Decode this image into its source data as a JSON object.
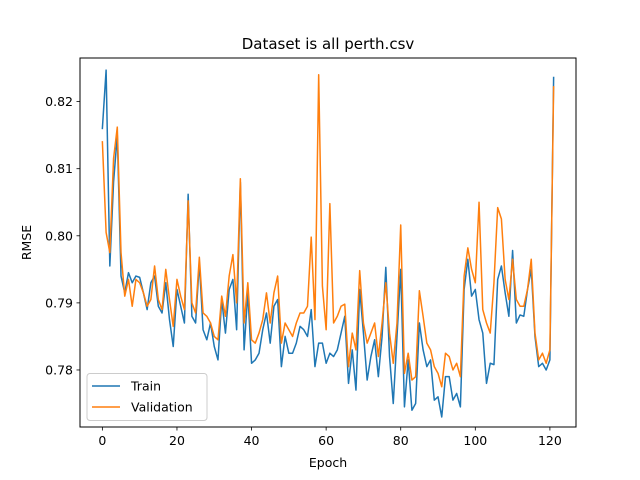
{
  "chart_data": {
    "type": "line",
    "title": "Dataset is all perth.csv",
    "xlabel": "Epoch",
    "ylabel": "RMSE",
    "xlim": [
      -6,
      127
    ],
    "ylim": [
      0.7715,
      0.8265
    ],
    "xticks": [
      0,
      20,
      40,
      60,
      80,
      100,
      120
    ],
    "yticks": [
      0.78,
      0.79,
      0.8,
      0.81,
      0.82
    ],
    "ytick_labels": [
      "0.78",
      "0.79",
      "0.80",
      "0.81",
      "0.82"
    ],
    "grid": false,
    "legend_position": "lower-left",
    "x": [
      0,
      1,
      2,
      3,
      4,
      5,
      6,
      7,
      8,
      9,
      10,
      11,
      12,
      13,
      14,
      15,
      16,
      17,
      18,
      19,
      20,
      21,
      22,
      23,
      24,
      25,
      26,
      27,
      28,
      29,
      30,
      31,
      32,
      33,
      34,
      35,
      36,
      37,
      38,
      39,
      40,
      41,
      42,
      43,
      44,
      45,
      46,
      47,
      48,
      49,
      50,
      51,
      52,
      53,
      54,
      55,
      56,
      57,
      58,
      59,
      60,
      61,
      62,
      63,
      64,
      65,
      66,
      67,
      68,
      69,
      70,
      71,
      72,
      73,
      74,
      75,
      76,
      77,
      78,
      79,
      80,
      81,
      82,
      83,
      84,
      85,
      86,
      87,
      88,
      89,
      90,
      91,
      92,
      93,
      94,
      95,
      96,
      97,
      98,
      99,
      100,
      101,
      102,
      103,
      104,
      105,
      106,
      107,
      108,
      109,
      110,
      111,
      112,
      113,
      114,
      115,
      116,
      117,
      118,
      119,
      120,
      121
    ],
    "series": [
      {
        "name": "Train",
        "color": "#1f77b4",
        "values": [
          0.816,
          0.8247,
          0.7955,
          0.808,
          0.815,
          0.794,
          0.7915,
          0.7945,
          0.793,
          0.794,
          0.7938,
          0.7915,
          0.789,
          0.793,
          0.794,
          0.7895,
          0.7885,
          0.793,
          0.7875,
          0.7835,
          0.792,
          0.7895,
          0.787,
          0.8062,
          0.788,
          0.787,
          0.796,
          0.786,
          0.7845,
          0.787,
          0.7835,
          0.7815,
          0.7905,
          0.7855,
          0.792,
          0.7935,
          0.786,
          0.808,
          0.783,
          0.7915,
          0.781,
          0.7815,
          0.7825,
          0.786,
          0.7885,
          0.784,
          0.7895,
          0.7905,
          0.7805,
          0.785,
          0.7825,
          0.7825,
          0.784,
          0.7865,
          0.786,
          0.785,
          0.789,
          0.7805,
          0.784,
          0.784,
          0.781,
          0.7825,
          0.782,
          0.783,
          0.7855,
          0.788,
          0.778,
          0.783,
          0.777,
          0.792,
          0.7855,
          0.7785,
          0.782,
          0.7845,
          0.779,
          0.785,
          0.7953,
          0.782,
          0.775,
          0.785,
          0.795,
          0.7745,
          0.7815,
          0.774,
          0.775,
          0.787,
          0.783,
          0.7805,
          0.7815,
          0.7755,
          0.776,
          0.773,
          0.779,
          0.779,
          0.7755,
          0.7765,
          0.7745,
          0.792,
          0.7965,
          0.791,
          0.792,
          0.7875,
          0.7855,
          0.778,
          0.781,
          0.7808,
          0.7935,
          0.7955,
          0.7915,
          0.788,
          0.7978,
          0.787,
          0.7882,
          0.788,
          0.792,
          0.795,
          0.785,
          0.7805,
          0.781,
          0.78,
          0.7815,
          0.8236
        ]
      },
      {
        "name": "Validation",
        "color": "#ff7f0e",
        "values": [
          0.814,
          0.8005,
          0.7975,
          0.8115,
          0.8162,
          0.7975,
          0.791,
          0.7935,
          0.7895,
          0.7935,
          0.793,
          0.7915,
          0.7895,
          0.7905,
          0.7955,
          0.7905,
          0.789,
          0.795,
          0.7905,
          0.7865,
          0.7935,
          0.791,
          0.789,
          0.8052,
          0.79,
          0.7885,
          0.7968,
          0.7885,
          0.788,
          0.787,
          0.785,
          0.7845,
          0.791,
          0.788,
          0.794,
          0.7972,
          0.79,
          0.8085,
          0.787,
          0.793,
          0.7845,
          0.784,
          0.7855,
          0.7875,
          0.7915,
          0.787,
          0.7915,
          0.794,
          0.784,
          0.787,
          0.786,
          0.785,
          0.787,
          0.7885,
          0.7885,
          0.7895,
          0.7998,
          0.7875,
          0.824,
          0.7925,
          0.786,
          0.8048,
          0.787,
          0.788,
          0.7895,
          0.7898,
          0.7805,
          0.7855,
          0.783,
          0.7948,
          0.787,
          0.784,
          0.7855,
          0.787,
          0.782,
          0.787,
          0.793,
          0.7855,
          0.781,
          0.787,
          0.8016,
          0.7795,
          0.7825,
          0.7785,
          0.779,
          0.7918,
          0.788,
          0.784,
          0.783,
          0.7805,
          0.7795,
          0.7775,
          0.7825,
          0.782,
          0.78,
          0.781,
          0.779,
          0.794,
          0.7982,
          0.795,
          0.793,
          0.805,
          0.789,
          0.787,
          0.7855,
          0.793,
          0.8042,
          0.8025,
          0.7935,
          0.7905,
          0.7965,
          0.7905,
          0.7895,
          0.7895,
          0.792,
          0.7965,
          0.7855,
          0.7815,
          0.7825,
          0.781,
          0.783,
          0.8222
        ]
      }
    ]
  }
}
